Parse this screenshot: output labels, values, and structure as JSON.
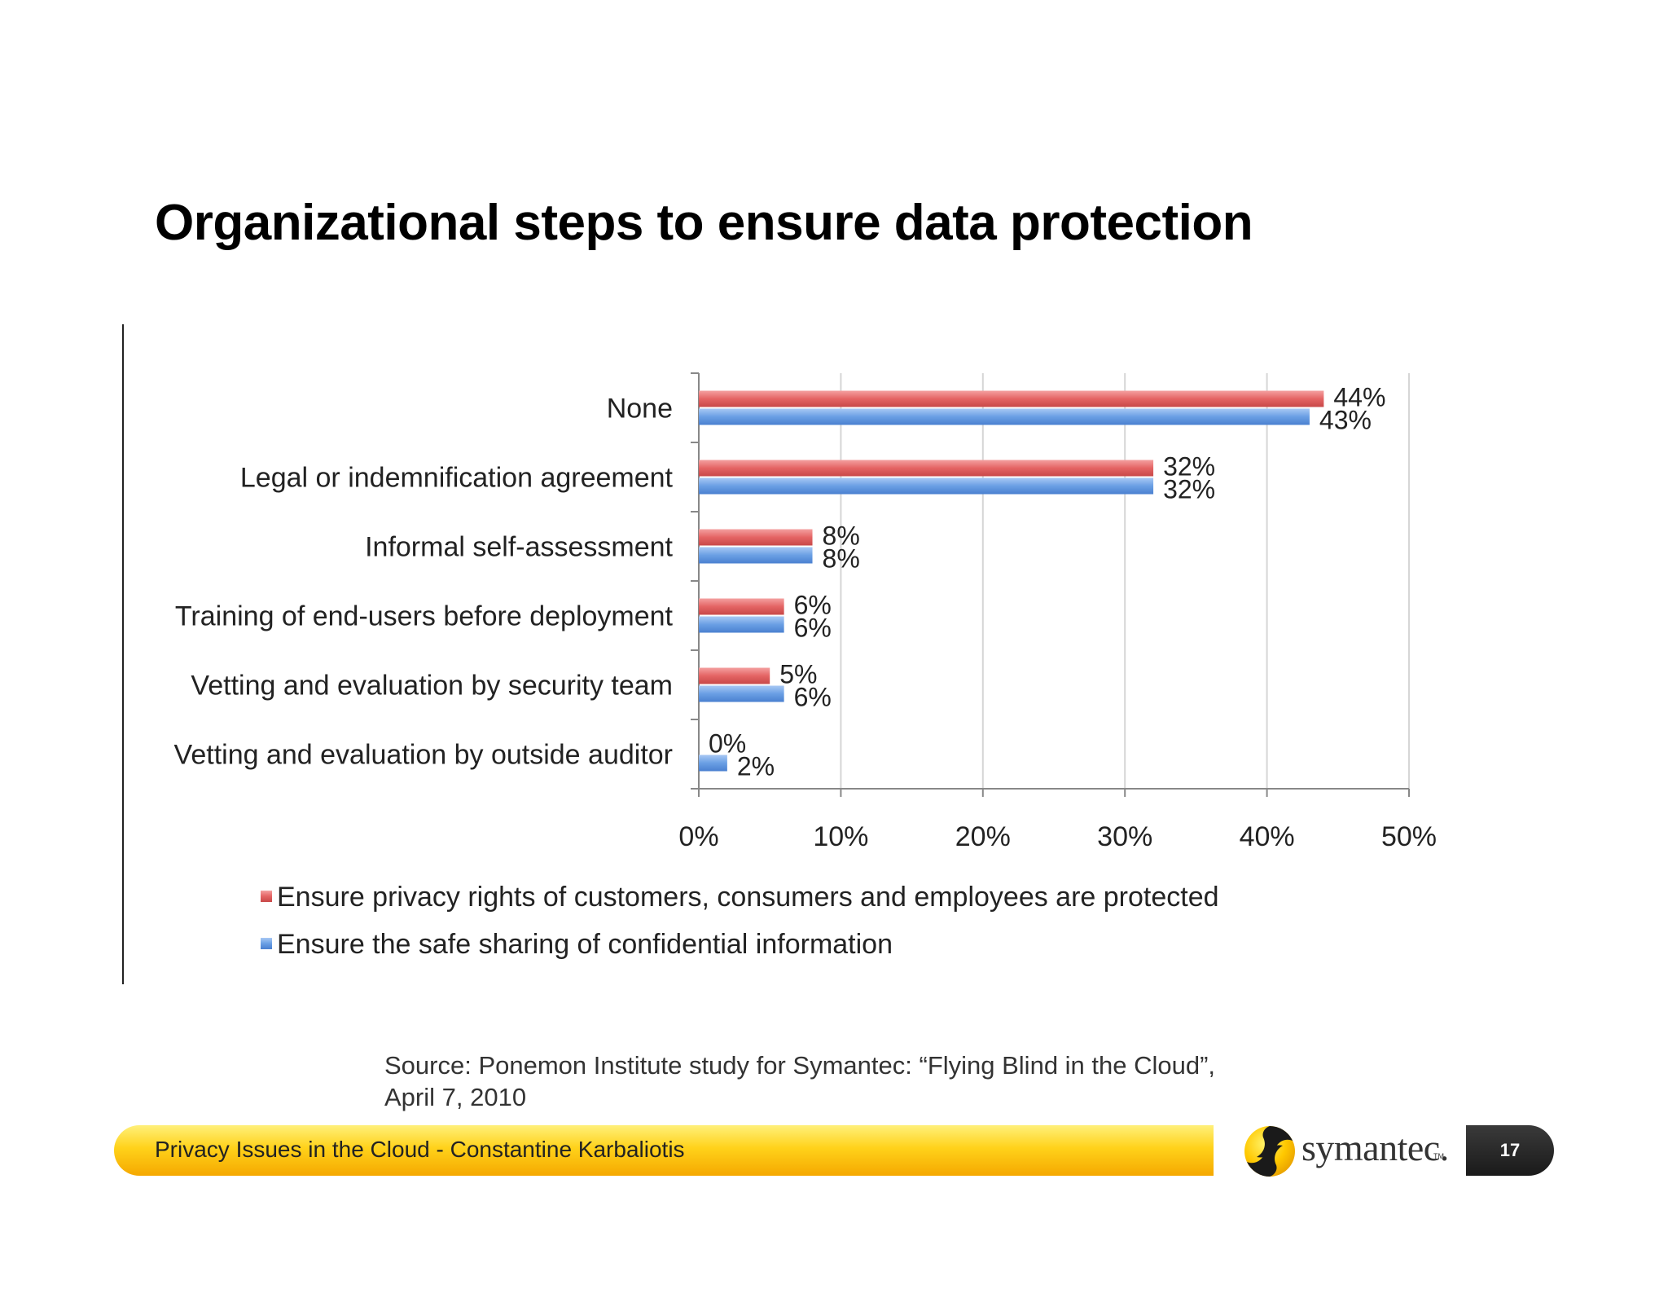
{
  "slide": {
    "title": "Organizational steps to ensure data protection",
    "source_line1": "Source: Ponemon Institute study for Symantec: “Flying Blind in the Cloud”,",
    "source_line2": "April 7, 2010",
    "footer_text": "Privacy Issues in the Cloud - Constantine Karbaliotis",
    "logo_text": "symantec.",
    "logo_tm": "TM",
    "page_number": "17"
  },
  "chart_data": {
    "type": "bar",
    "orientation": "horizontal",
    "categories": [
      "None",
      "Legal or indemnification agreement",
      "Informal self-assessment",
      "Training of end-users before deployment",
      "Vetting and evaluation by security team",
      "Vetting and evaluation by outside auditor"
    ],
    "series": [
      {
        "name": "Ensure privacy rights of customers, consumers and employees are protected",
        "color": "#e46464",
        "values": [
          44,
          32,
          8,
          6,
          5,
          0
        ],
        "labels": [
          "44%",
          "32%",
          "8%",
          "6%",
          "5%",
          "0%"
        ]
      },
      {
        "name": "Ensure the safe sharing of confidential information",
        "color": "#6a9fe4",
        "values": [
          43,
          32,
          8,
          6,
          6,
          2
        ],
        "labels": [
          "43%",
          "32%",
          "8%",
          "6%",
          "6%",
          "2%"
        ]
      }
    ],
    "x_ticks": [
      "0%",
      "10%",
      "20%",
      "30%",
      "40%",
      "50%"
    ],
    "xlim": [
      0,
      50
    ],
    "grid": true,
    "legend_position": "bottom-left"
  }
}
